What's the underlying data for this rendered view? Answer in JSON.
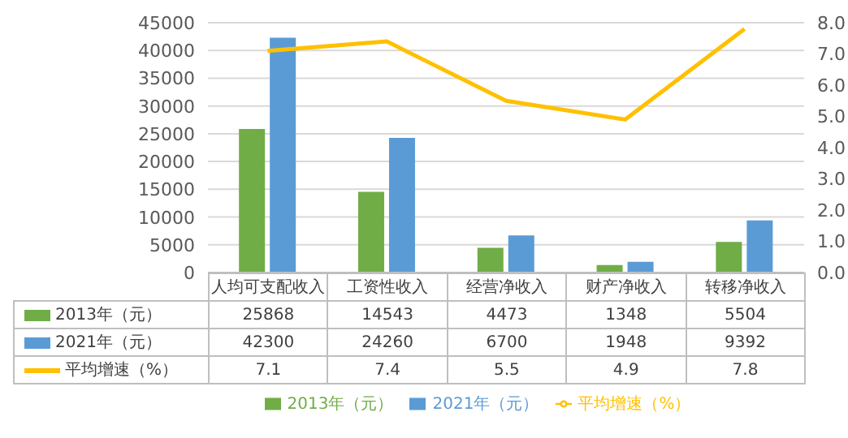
{
  "chart_data": {
    "type": "bar",
    "categories": [
      "人均可支配收入",
      "工资性收入",
      "经营净收入",
      "财产净收入",
      "转移净收入"
    ],
    "series": [
      {
        "name": "2013年（元）",
        "color": "#70ad47",
        "values": [
          25868,
          14543,
          4473,
          1348,
          5504
        ]
      },
      {
        "name": "2021年（元）",
        "color": "#5b9bd5",
        "values": [
          42300,
          24260,
          6700,
          1948,
          9392
        ]
      },
      {
        "name": "平均增速（%）",
        "type": "line",
        "axis": "y2",
        "color": "#ffc000",
        "values": [
          7.1,
          7.4,
          5.5,
          4.9,
          7.8
        ]
      }
    ],
    "ylim": [
      0,
      45000
    ],
    "yticks": [
      0,
      5000,
      10000,
      15000,
      20000,
      25000,
      30000,
      35000,
      40000,
      45000
    ],
    "y2lim": [
      0,
      8
    ],
    "y2ticks": [
      {
        "value": 0,
        "label": "0.0"
      },
      {
        "value": 1,
        "label": "1.0"
      },
      {
        "value": 2,
        "label": "2.0"
      },
      {
        "value": 3,
        "label": "3.0"
      },
      {
        "value": 4,
        "label": "4.0"
      },
      {
        "value": 5,
        "label": "5.0"
      },
      {
        "value": 6,
        "label": "6.0"
      },
      {
        "value": 7,
        "label": "7.0"
      },
      {
        "value": 8,
        "label": "8.0"
      }
    ],
    "grid": "y",
    "legend": "bottom",
    "marker": "none",
    "line_style": "solid",
    "data_labels": true
  }
}
